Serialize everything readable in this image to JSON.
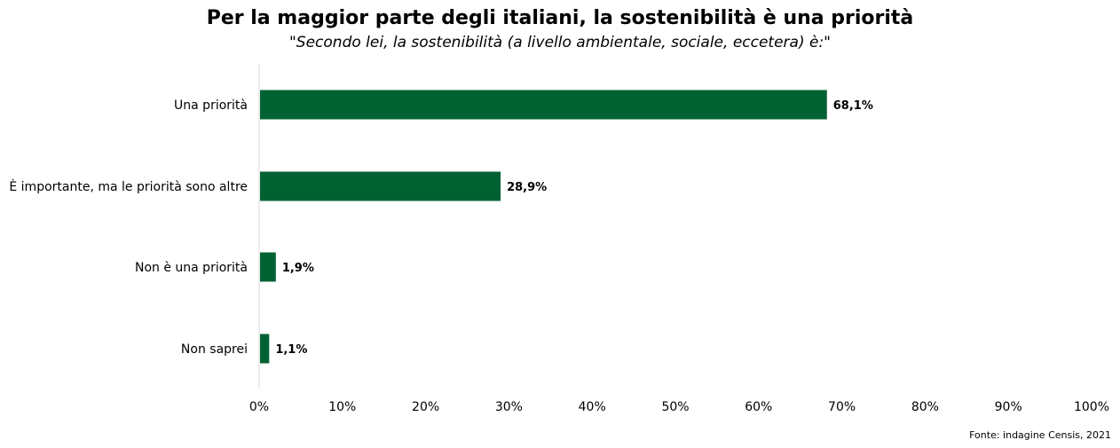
{
  "header": {
    "title": "Per la maggior parte degli italiani, la sostenibilità è una priorità",
    "subtitle": "\"Secondo lei, la sostenibilità (a livello ambientale, sociale, eccetera) è:\""
  },
  "source": "Fonte: indagine Censis, 2021",
  "colors": {
    "bar": "#006233",
    "axis": "#d9d9d9"
  },
  "chart_data": {
    "type": "bar",
    "orientation": "horizontal",
    "title": "Per la maggior parte degli italiani, la sostenibilità è una priorità",
    "subtitle": "\"Secondo lei, la sostenibilità (a livello ambientale, sociale, eccetera) è:\"",
    "categories": [
      "Una priorità",
      "È importante, ma le priorità sono altre",
      "Non è una priorità",
      "Non saprei"
    ],
    "values": [
      68.1,
      28.9,
      1.9,
      1.1
    ],
    "value_labels": [
      "68,1%",
      "28,9%",
      "1,9%",
      "1,1%"
    ],
    "xlim": [
      0,
      100
    ],
    "xticks": [
      0,
      10,
      20,
      30,
      40,
      50,
      60,
      70,
      80,
      90,
      100
    ],
    "xtick_labels": [
      "0%",
      "10%",
      "20%",
      "30%",
      "40%",
      "50%",
      "60%",
      "70%",
      "80%",
      "90%",
      "100%"
    ],
    "grid": false,
    "legend": "none"
  }
}
